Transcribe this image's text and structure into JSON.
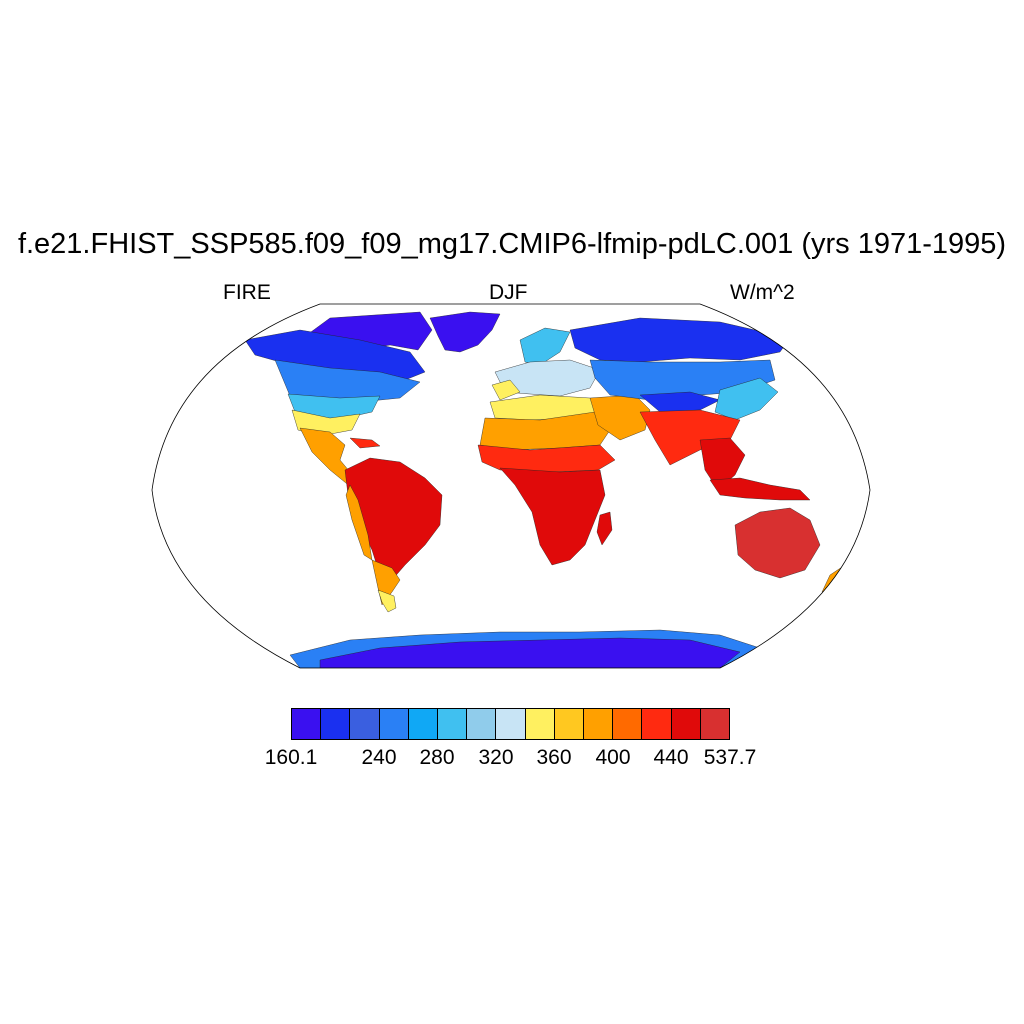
{
  "title": "f.e21.FHIST_SSP585.f09_f09_mg17.CMIP6-lfmip-pdLC.001 (yrs 1971-1995)",
  "left_label": "FIRE",
  "center_label": "DJF",
  "right_label": "W/m^2",
  "colorbar": {
    "colors": [
      "#3a10f0",
      "#1a30f0",
      "#3a5fe0",
      "#2a80f5",
      "#10a8f5",
      "#40c0f0",
      "#90cceb",
      "#c8e4f5",
      "#fff060",
      "#ffc820",
      "#ffa000",
      "#ff6a00",
      "#ff2a10",
      "#e00a0a",
      "#d83030"
    ],
    "tick_labels": [
      "160.1",
      "240",
      "280",
      "320",
      "360",
      "400",
      "440",
      "537.7"
    ]
  },
  "map": {
    "projection": "robinson",
    "land_colors": {
      "antarctica": "#3a10f0",
      "arctic": "#3a10f0",
      "high_latitude": "#1a30f0",
      "boreal": "#2a80f5",
      "cold_temperate": "#40c0f0",
      "temperate": "#90cceb",
      "mild": "#c8e4f5",
      "subtropical_edge": "#fff060",
      "subtropical": "#ffa000",
      "warm": "#ff6a00",
      "hot": "#ff2a10",
      "tropical": "#e00a0a",
      "australia": "#d83030"
    },
    "ocean_color": "#ffffff"
  }
}
